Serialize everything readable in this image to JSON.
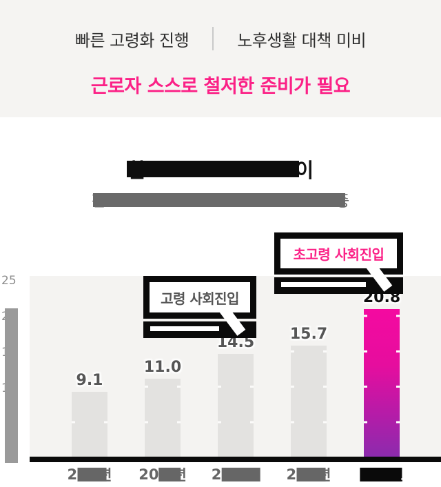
{
  "header": {
    "item_left": "빠른 고령화 진행",
    "item_right": "노후생활 대책 미비",
    "tagline": "근로자 스스로 철저한 준비가 필요"
  },
  "title_section": {
    "title_fragment_left": "한",
    "title_fragment_right": "이",
    "title_redacted": true,
    "subtitle_fragment_left": "전",
    "subtitle_fragment_right": "중",
    "subtitle_redacted": true
  },
  "chart_data": {
    "type": "bar",
    "values": [
      9.1,
      11.0,
      14.5,
      15.7,
      20.8
    ],
    "value_labels": [
      "9.1",
      "11.0",
      "14.5",
      "15.7",
      "20.8"
    ],
    "categories_visible": [
      {
        "left": "2",
        "right": "년",
        "redacted": true,
        "dark": false
      },
      {
        "left": "20",
        "right": "년",
        "redacted": true,
        "dark": false
      },
      {
        "left": "2",
        "right": "",
        "redacted": true,
        "dark": false
      },
      {
        "left": "2",
        "right": "년",
        "redacted": true,
        "dark": false
      },
      {
        "left": "",
        "right": "년",
        "redacted": true,
        "dark": true
      }
    ],
    "y_tick_labels": [
      "25",
      "20",
      "15",
      "10"
    ],
    "ylim": [
      0,
      25
    ],
    "grid": "white tick marks at 5-unit intervals on bars",
    "legend": "none",
    "highlight_index": 4,
    "annotations": [
      {
        "text": "고령 사회진입",
        "color": "#555555",
        "points_to_value": 14.5
      },
      {
        "text": "초고령 사회진입",
        "color": "#fb2086",
        "points_to_value": 20.8
      }
    ],
    "colors": {
      "bar_default": "#e3e2e0",
      "bar_highlight_top": "#f40aa0",
      "bar_highlight_bottom": "#8c2bad",
      "plot_background": "#f4f3f1",
      "axis": "#0a0a0a",
      "value_label": "#565656",
      "value_label_highlight": "#0c0c0c",
      "accent_pink": "#fb2086",
      "header_background": "#f5f4f2"
    }
  }
}
